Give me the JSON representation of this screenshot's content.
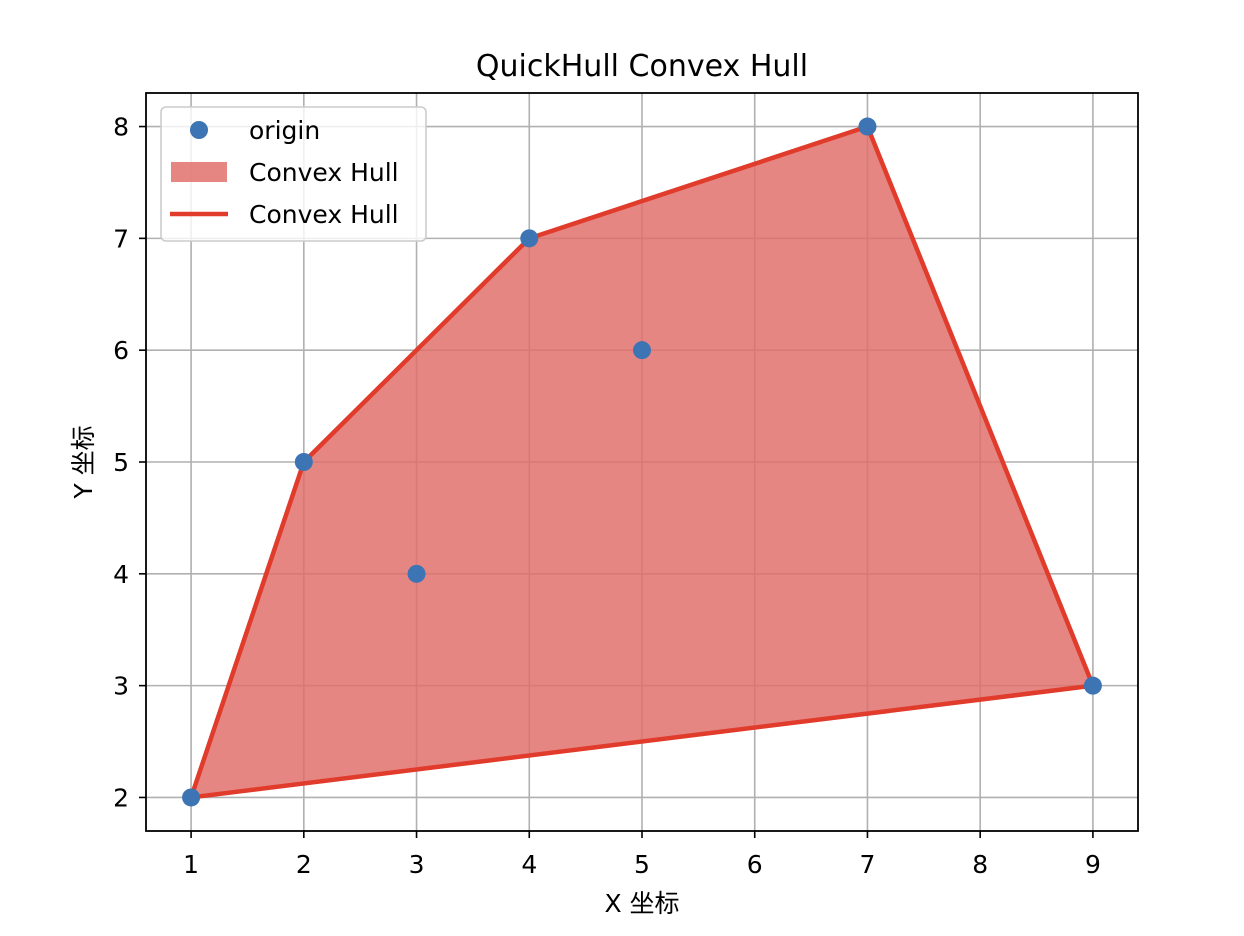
{
  "chart_data": {
    "type": "scatter",
    "title": "QuickHull Convex Hull",
    "xlabel": "X 坐标",
    "ylabel": "Y 坐标",
    "xlim": [
      0.6,
      9.4
    ],
    "ylim": [
      1.7,
      8.3
    ],
    "xticks": [
      1,
      2,
      3,
      4,
      5,
      6,
      7,
      8,
      9
    ],
    "yticks": [
      2,
      3,
      4,
      5,
      6,
      7,
      8
    ],
    "grid": true,
    "legend_position": "upper-left",
    "series": [
      {
        "name": "origin",
        "kind": "points",
        "color": "#3c74b4",
        "points": [
          [
            1,
            2
          ],
          [
            2,
            5
          ],
          [
            3,
            4
          ],
          [
            4,
            7
          ],
          [
            5,
            6
          ],
          [
            7,
            8
          ],
          [
            9,
            3
          ]
        ]
      },
      {
        "name": "Convex Hull",
        "kind": "fill",
        "color": "#e06e6a",
        "polygon": [
          [
            1,
            2
          ],
          [
            2,
            5
          ],
          [
            4,
            7
          ],
          [
            7,
            8
          ],
          [
            9,
            3
          ],
          [
            1,
            2
          ]
        ]
      },
      {
        "name": "Convex Hull",
        "kind": "line",
        "color": "#e03b2b",
        "polygon": [
          [
            1,
            2
          ],
          [
            2,
            5
          ],
          [
            4,
            7
          ],
          [
            7,
            8
          ],
          [
            9,
            3
          ],
          [
            1,
            2
          ]
        ]
      }
    ]
  }
}
